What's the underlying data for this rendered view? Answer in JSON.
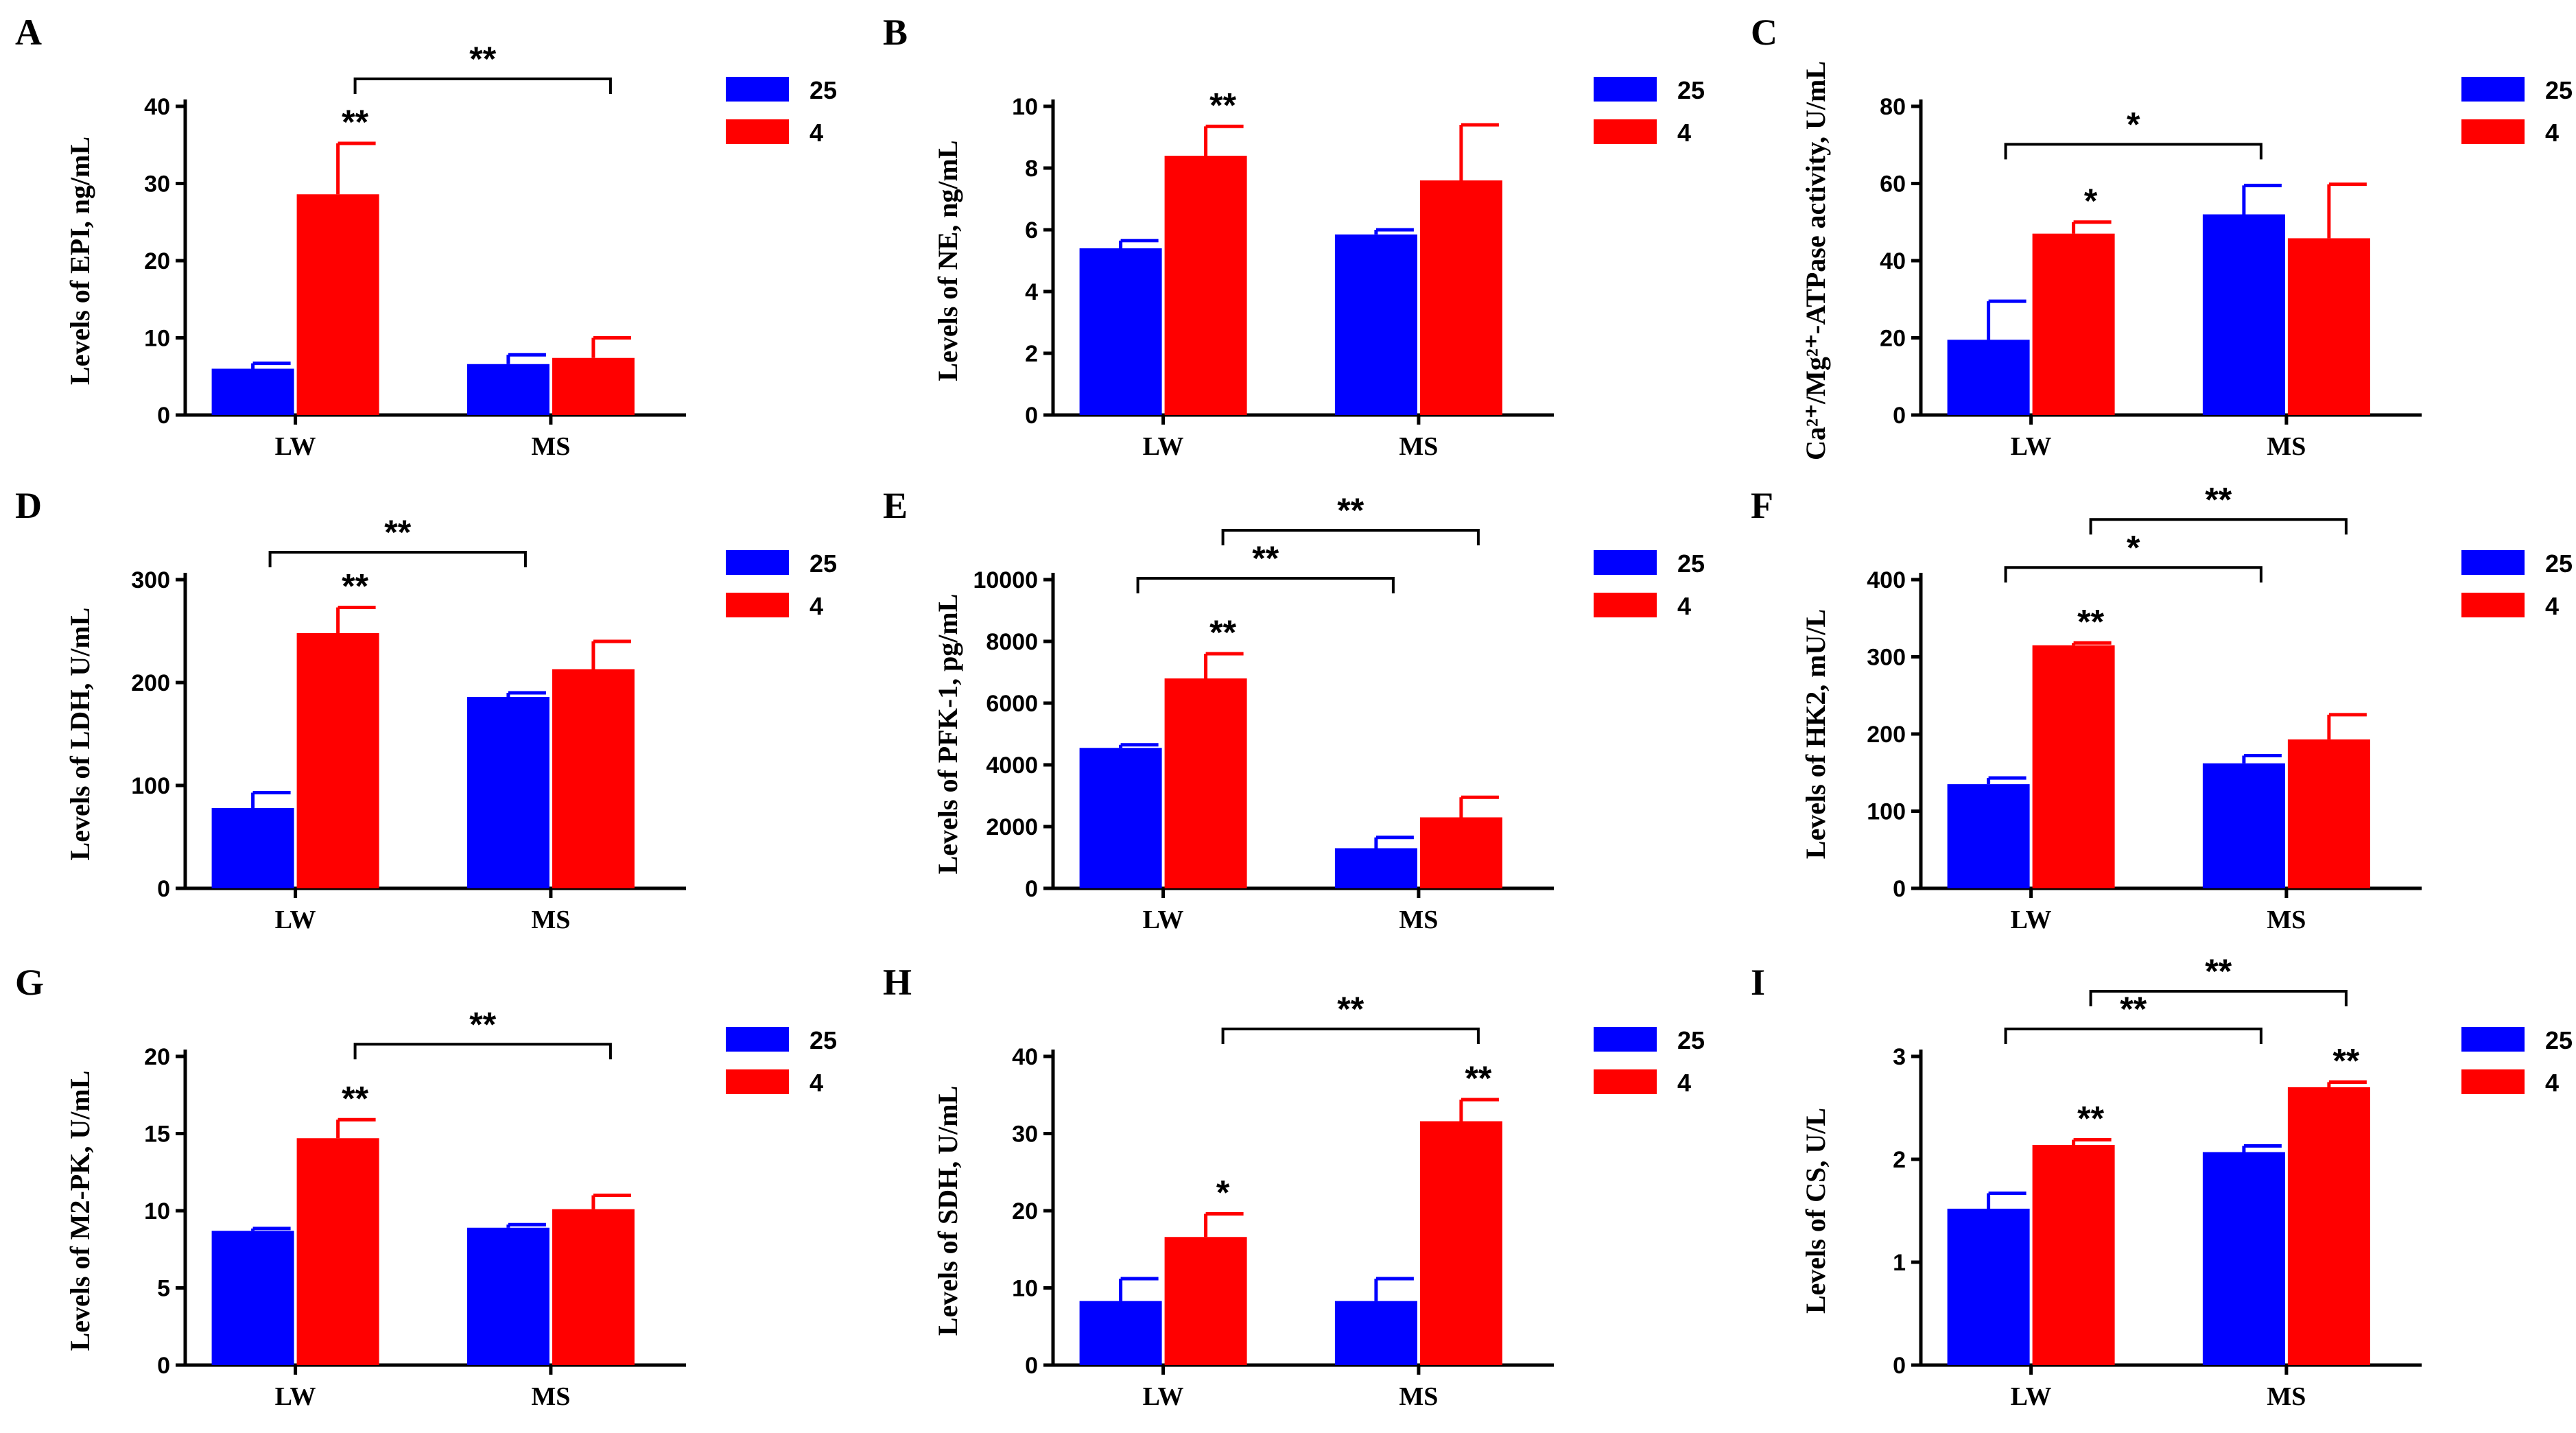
{
  "colors": {
    "series_25": "#0000ff",
    "series_4": "#ff0000",
    "axis": "#000000"
  },
  "chart_data": [
    {
      "panel": "A",
      "type": "bar",
      "ylabel": "Levels of EPI, ng/mL",
      "categories": [
        "LW",
        "MS"
      ],
      "ylim": [
        0,
        40
      ],
      "yticks": [
        0,
        10,
        20,
        30,
        40
      ],
      "series": [
        {
          "name": "25",
          "values": [
            6.0,
            6.6
          ],
          "errors": [
            0.7,
            1.2
          ]
        },
        {
          "name": "4",
          "values": [
            28.6,
            7.4
          ],
          "errors": [
            6.6,
            2.6
          ]
        }
      ],
      "bar_sig": [
        {
          "category": 0,
          "series": 1,
          "text": "**"
        }
      ],
      "brackets": [
        {
          "from": [
            0,
            1
          ],
          "to": [
            1,
            1
          ],
          "text": "**"
        }
      ],
      "legend": [
        "25",
        "4"
      ]
    },
    {
      "panel": "B",
      "type": "bar",
      "ylabel": "Levels of NE, ng/mL",
      "categories": [
        "LW",
        "MS"
      ],
      "ylim": [
        0,
        10
      ],
      "yticks": [
        0,
        2,
        4,
        6,
        8,
        10
      ],
      "series": [
        {
          "name": "25",
          "values": [
            5.4,
            5.85
          ],
          "errors": [
            0.25,
            0.15
          ]
        },
        {
          "name": "4",
          "values": [
            8.4,
            7.6
          ],
          "errors": [
            0.95,
            1.8
          ]
        }
      ],
      "bar_sig": [
        {
          "category": 0,
          "series": 1,
          "text": "**"
        }
      ],
      "brackets": [],
      "legend": [
        "25",
        "4"
      ]
    },
    {
      "panel": "C",
      "type": "bar",
      "ylabel": "Ca²⁺/Mg²⁺-ATPase activity, U/mL",
      "categories": [
        "LW",
        "MS"
      ],
      "ylim": [
        0,
        80
      ],
      "yticks": [
        0,
        20,
        40,
        60,
        80
      ],
      "series": [
        {
          "name": "25",
          "values": [
            19.5,
            52.0
          ],
          "errors": [
            10.0,
            7.5
          ]
        },
        {
          "name": "4",
          "values": [
            47.0,
            45.8
          ],
          "errors": [
            3.0,
            14.0
          ]
        }
      ],
      "bar_sig": [
        {
          "category": 0,
          "series": 1,
          "text": "*"
        }
      ],
      "brackets": [
        {
          "from": [
            0,
            0
          ],
          "to": [
            1,
            0
          ],
          "text": "*"
        }
      ],
      "legend": [
        "25",
        "4"
      ]
    },
    {
      "panel": "D",
      "type": "bar",
      "ylabel": "Levels of LDH, U/mL",
      "categories": [
        "LW",
        "MS"
      ],
      "ylim": [
        0,
        300
      ],
      "yticks": [
        0,
        100,
        200,
        300
      ],
      "series": [
        {
          "name": "25",
          "values": [
            78,
            186
          ],
          "errors": [
            15,
            4
          ]
        },
        {
          "name": "4",
          "values": [
            248,
            213
          ],
          "errors": [
            25,
            27
          ]
        }
      ],
      "bar_sig": [
        {
          "category": 0,
          "series": 1,
          "text": "**"
        }
      ],
      "brackets": [
        {
          "from": [
            0,
            0
          ],
          "to": [
            1,
            0
          ],
          "text": "**"
        }
      ],
      "legend": [
        "25",
        "4"
      ]
    },
    {
      "panel": "E",
      "type": "bar",
      "ylabel": "Levels of PFK-1, pg/mL",
      "categories": [
        "LW",
        "MS"
      ],
      "ylim": [
        0,
        10000
      ],
      "yticks": [
        0,
        2000,
        4000,
        6000,
        8000,
        10000
      ],
      "series": [
        {
          "name": "25",
          "values": [
            4550,
            1300
          ],
          "errors": [
            100,
            350
          ]
        },
        {
          "name": "4",
          "values": [
            6800,
            2300
          ],
          "errors": [
            800,
            650
          ]
        }
      ],
      "bar_sig": [
        {
          "category": 0,
          "series": 1,
          "text": "**"
        }
      ],
      "brackets": [
        {
          "from": [
            0,
            0
          ],
          "to": [
            1,
            0
          ],
          "text": "**"
        },
        {
          "from": [
            0,
            1
          ],
          "to": [
            1,
            1
          ],
          "text": "**"
        }
      ],
      "legend": [
        "25",
        "4"
      ]
    },
    {
      "panel": "F",
      "type": "bar",
      "ylabel": "Levels of HK2, mU/L",
      "categories": [
        "LW",
        "MS"
      ],
      "ylim": [
        0,
        400
      ],
      "yticks": [
        0,
        100,
        200,
        300,
        400
      ],
      "series": [
        {
          "name": "25",
          "values": [
            135,
            162
          ],
          "errors": [
            8,
            10
          ]
        },
        {
          "name": "4",
          "values": [
            315,
            193
          ],
          "errors": [
            3,
            32
          ]
        }
      ],
      "bar_sig": [
        {
          "category": 0,
          "series": 1,
          "text": "**"
        }
      ],
      "brackets": [
        {
          "from": [
            0,
            0
          ],
          "to": [
            1,
            0
          ],
          "text": "*"
        },
        {
          "from": [
            0,
            1
          ],
          "to": [
            1,
            1
          ],
          "text": "**"
        }
      ],
      "legend": [
        "25",
        "4"
      ]
    },
    {
      "panel": "G",
      "type": "bar",
      "ylabel": "Levels of M2-PK, U/mL",
      "categories": [
        "LW",
        "MS"
      ],
      "ylim": [
        0,
        20
      ],
      "yticks": [
        0,
        5,
        10,
        15,
        20
      ],
      "series": [
        {
          "name": "25",
          "values": [
            8.7,
            8.9
          ],
          "errors": [
            0.15,
            0.2
          ]
        },
        {
          "name": "4",
          "values": [
            14.7,
            10.1
          ],
          "errors": [
            1.2,
            0.9
          ]
        }
      ],
      "bar_sig": [
        {
          "category": 0,
          "series": 1,
          "text": "**"
        }
      ],
      "brackets": [
        {
          "from": [
            0,
            1
          ],
          "to": [
            1,
            1
          ],
          "text": "**"
        }
      ],
      "legend": [
        "25",
        "4"
      ]
    },
    {
      "panel": "H",
      "type": "bar",
      "ylabel": "Levels of SDH, U/mL",
      "categories": [
        "LW",
        "MS"
      ],
      "ylim": [
        0,
        40
      ],
      "yticks": [
        0,
        10,
        20,
        30,
        40
      ],
      "series": [
        {
          "name": "25",
          "values": [
            8.3,
            8.3
          ],
          "errors": [
            2.9,
            2.9
          ]
        },
        {
          "name": "4",
          "values": [
            16.6,
            31.6
          ],
          "errors": [
            3.0,
            2.8
          ]
        }
      ],
      "bar_sig": [
        {
          "category": 0,
          "series": 1,
          "text": "*"
        },
        {
          "category": 1,
          "series": 1,
          "text": "**"
        }
      ],
      "brackets": [
        {
          "from": [
            0,
            1
          ],
          "to": [
            1,
            1
          ],
          "text": "**"
        }
      ],
      "legend": [
        "25",
        "4"
      ]
    },
    {
      "panel": "I",
      "type": "bar",
      "ylabel": "Levels of CS, U/L",
      "categories": [
        "LW",
        "MS"
      ],
      "ylim": [
        0,
        3
      ],
      "yticks": [
        0,
        1,
        2,
        3
      ],
      "series": [
        {
          "name": "25",
          "values": [
            1.52,
            2.07
          ],
          "errors": [
            0.15,
            0.06
          ]
        },
        {
          "name": "4",
          "values": [
            2.14,
            2.7
          ],
          "errors": [
            0.05,
            0.05
          ]
        }
      ],
      "bar_sig": [
        {
          "category": 0,
          "series": 1,
          "text": "**"
        },
        {
          "category": 1,
          "series": 1,
          "text": "**"
        }
      ],
      "brackets": [
        {
          "from": [
            0,
            0
          ],
          "to": [
            1,
            0
          ],
          "text": "**"
        },
        {
          "from": [
            0,
            1
          ],
          "to": [
            1,
            1
          ],
          "text": "**"
        }
      ],
      "legend": [
        "25",
        "4"
      ]
    }
  ]
}
